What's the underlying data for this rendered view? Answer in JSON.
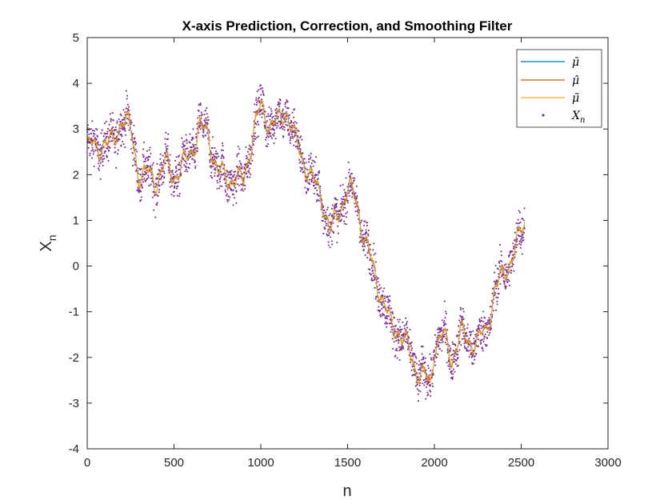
{
  "chart_data": {
    "type": "line",
    "title": "X-axis Prediction, Correction, and Smoothing Filter",
    "xlabel": "n",
    "ylabel": "X",
    "ylabel_subscript": "n",
    "xlim": [
      0,
      3000
    ],
    "ylim": [
      -4,
      5
    ],
    "xticks": [
      "0",
      "500",
      "1000",
      "1500",
      "2000",
      "2500",
      "3000"
    ],
    "yticks": [
      "-4",
      "-3",
      "-2",
      "-1",
      "0",
      "1",
      "2",
      "3",
      "4",
      "5"
    ],
    "legend_position": "top-right",
    "colors": {
      "mu_bar": "#0072BD",
      "mu_hat": "#D95319",
      "mu_tilde": "#EDB120",
      "x_n": "#7E2F8E"
    },
    "trend": {
      "x": [
        0,
        50,
        100,
        150,
        200,
        250,
        300,
        350,
        400,
        450,
        500,
        550,
        600,
        650,
        700,
        750,
        800,
        850,
        900,
        950,
        1000,
        1050,
        1100,
        1150,
        1200,
        1250,
        1300,
        1350,
        1400,
        1450,
        1500,
        1550,
        1600,
        1650,
        1700,
        1750,
        1800,
        1850,
        1900,
        1950,
        1975,
        2000,
        2050,
        2100,
        2150,
        2200,
        2250,
        2300,
        2350,
        2400,
        2450,
        2500,
        2520
      ],
      "y": [
        2.6,
        2.6,
        2.8,
        2.7,
        3.2,
        2.9,
        2.0,
        2.1,
        1.9,
        2.2,
        1.9,
        2.2,
        2.6,
        3.1,
        2.8,
        2.0,
        1.9,
        2.0,
        1.9,
        2.8,
        3.4,
        3.1,
        3.2,
        3.5,
        2.7,
        2.2,
        1.8,
        1.6,
        0.8,
        1.2,
        1.6,
        1.4,
        0.6,
        0.0,
        -0.7,
        -1.4,
        -1.5,
        -1.8,
        -2.2,
        -2.4,
        -2.7,
        -1.8,
        -1.6,
        -2.0,
        -1.4,
        -1.6,
        -1.7,
        -1.5,
        -0.5,
        -0.1,
        0.3,
        0.7,
        0.9
      ]
    },
    "series": [
      {
        "name": "μ̄",
        "kind": "line"
      },
      {
        "name": "μ̂",
        "kind": "line"
      },
      {
        "name": "μ̃",
        "kind": "line"
      },
      {
        "name": "X",
        "subscript": "n",
        "kind": "scatter"
      }
    ]
  }
}
